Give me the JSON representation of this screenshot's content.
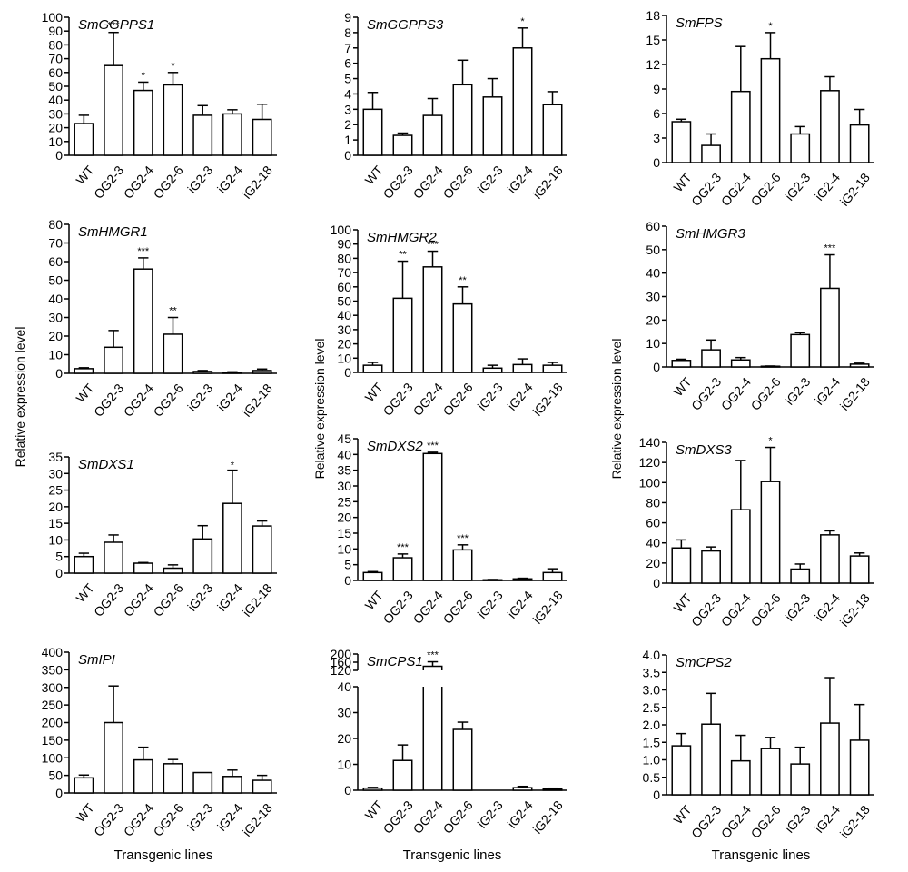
{
  "figure": {
    "ylabel": "Relative expression level",
    "xlabel": "Transgenic lines",
    "categories": [
      "WT",
      "OG2-3",
      "OG2-4",
      "OG2-6",
      "iG2-3",
      "iG2-4",
      "iG2-18"
    ]
  },
  "chart_data": [
    {
      "type": "bar",
      "title": "SmGGPPS1",
      "ylim": [
        0,
        100
      ],
      "yticks": [
        0,
        10,
        20,
        30,
        40,
        50,
        60,
        70,
        80,
        90,
        100
      ],
      "values": [
        23,
        65,
        47,
        51,
        29,
        30,
        26
      ],
      "errors": [
        6,
        24,
        6,
        9,
        7,
        3,
        11
      ],
      "significance": [
        "",
        "***",
        "*",
        "*",
        "",
        "",
        ""
      ]
    },
    {
      "type": "bar",
      "title": "SmGGPPS3",
      "ylim": [
        0,
        9
      ],
      "yticks": [
        0,
        1,
        2,
        3,
        4,
        5,
        6,
        7,
        8,
        9
      ],
      "values": [
        3.0,
        1.3,
        2.6,
        4.6,
        3.8,
        7.0,
        3.3
      ],
      "errors": [
        1.1,
        0.15,
        1.1,
        1.6,
        1.2,
        1.3,
        0.85
      ],
      "significance": [
        "",
        "",
        "",
        "",
        "",
        "*",
        ""
      ]
    },
    {
      "type": "bar",
      "title": "SmFPS",
      "ylim": [
        0,
        18
      ],
      "yticks": [
        0,
        3,
        6,
        9,
        12,
        15,
        18
      ],
      "values": [
        5.0,
        2.1,
        8.7,
        12.7,
        3.5,
        8.8,
        4.6
      ],
      "errors": [
        0.3,
        1.4,
        5.5,
        3.2,
        0.9,
        1.7,
        1.9
      ],
      "significance": [
        "",
        "",
        "",
        "*",
        "",
        "",
        ""
      ]
    },
    {
      "type": "bar",
      "title": "SmHMGR1",
      "ylim": [
        0,
        80
      ],
      "yticks": [
        0,
        10,
        20,
        30,
        40,
        50,
        60,
        70,
        80
      ],
      "values": [
        2.5,
        14,
        56,
        21,
        1,
        0.5,
        1.5
      ],
      "errors": [
        0.5,
        9,
        6,
        9,
        0.5,
        0.3,
        0.8
      ],
      "significance": [
        "",
        "",
        "***",
        "**",
        "",
        "",
        ""
      ]
    },
    {
      "type": "bar",
      "title": "SmHMGR2",
      "ylim": [
        0,
        100
      ],
      "yticks": [
        0,
        10,
        20,
        30,
        40,
        50,
        60,
        70,
        80,
        90,
        100
      ],
      "values": [
        5,
        52,
        74,
        48,
        3,
        5.5,
        5
      ],
      "errors": [
        2,
        26,
        11,
        12,
        2,
        4,
        2
      ],
      "significance": [
        "",
        "**",
        "***",
        "**",
        "",
        "",
        ""
      ]
    },
    {
      "type": "bar",
      "title": "SmHMGR3",
      "ylim": [
        0,
        60
      ],
      "yticks": [
        0,
        10,
        20,
        30,
        40,
        50,
        60
      ],
      "values": [
        2.8,
        7.3,
        3.0,
        0.3,
        13.8,
        33.5,
        1.2
      ],
      "errors": [
        0.5,
        4.2,
        1.0,
        0.1,
        0.8,
        14.3,
        0.4
      ],
      "significance": [
        "",
        "",
        "",
        "",
        "",
        "***",
        ""
      ]
    },
    {
      "type": "bar",
      "title": "SmDXS1",
      "ylim": [
        0,
        35
      ],
      "yticks": [
        0,
        5,
        10,
        15,
        20,
        25,
        30,
        35
      ],
      "values": [
        5.0,
        9.3,
        3.0,
        1.5,
        10.3,
        21.0,
        14.2
      ],
      "errors": [
        1.0,
        2.2,
        0.2,
        1.0,
        4.0,
        10.0,
        1.5
      ],
      "significance": [
        "",
        "",
        "",
        "",
        "",
        "*",
        ""
      ]
    },
    {
      "type": "bar",
      "title": "SmDXS2",
      "ylim": [
        0,
        45
      ],
      "yticks": [
        0,
        5,
        10,
        15,
        20,
        25,
        30,
        35,
        40,
        45
      ],
      "values": [
        2.5,
        7.2,
        40.3,
        9.7,
        0.2,
        0.5,
        2.5
      ],
      "errors": [
        0.3,
        1.2,
        0.4,
        1.6,
        0.1,
        0.2,
        1.2
      ],
      "significance": [
        "",
        "***",
        "***",
        "***",
        "",
        "",
        ""
      ]
    },
    {
      "type": "bar",
      "title": "SmDXS3",
      "ylim": [
        0,
        140
      ],
      "yticks": [
        0,
        20,
        40,
        60,
        80,
        100,
        120,
        140
      ],
      "values": [
        35,
        32,
        73,
        101,
        14,
        48,
        27
      ],
      "errors": [
        8,
        4,
        49,
        34,
        5,
        4,
        3
      ],
      "significance": [
        "",
        "",
        "",
        "*",
        "",
        "",
        ""
      ]
    },
    {
      "type": "bar",
      "title": "SmIPI",
      "ylim": [
        0,
        400
      ],
      "yticks": [
        0,
        50,
        100,
        150,
        200,
        250,
        300,
        350,
        400
      ],
      "values": [
        43,
        200,
        94,
        83,
        58,
        47,
        36
      ],
      "errors": [
        8,
        104,
        36,
        12,
        0,
        18,
        14
      ],
      "significance": [
        "",
        "",
        "",
        "",
        "",
        "",
        ""
      ]
    },
    {
      "type": "bar",
      "title": "SmCPS1",
      "broken_axis": true,
      "lower_ylim": [
        0,
        40
      ],
      "lower_yticks": [
        0,
        10,
        20,
        30,
        40
      ],
      "upper_ylim": [
        120,
        200
      ],
      "upper_yticks": [
        120,
        160,
        200
      ],
      "values": [
        0.8,
        11.5,
        140,
        23.5,
        0,
        1.0,
        0.5
      ],
      "errors": [
        0.3,
        6.0,
        22,
        2.8,
        0,
        0.5,
        0.3
      ],
      "significance": [
        "",
        "",
        "***",
        "",
        "",
        "",
        ""
      ]
    },
    {
      "type": "bar",
      "title": "SmCPS2",
      "ylim": [
        0,
        4.0
      ],
      "yticks": [
        "0",
        "0.5",
        "1.0",
        "1.5",
        "2.0",
        "2.5",
        "3.0",
        "3.5",
        "4.0"
      ],
      "values": [
        1.4,
        2.02,
        0.97,
        1.32,
        0.88,
        2.05,
        1.56
      ],
      "errors": [
        0.35,
        0.88,
        0.73,
        0.32,
        0.48,
        1.3,
        1.02
      ],
      "significance": [
        "",
        "",
        "",
        "",
        "",
        "",
        ""
      ]
    }
  ]
}
